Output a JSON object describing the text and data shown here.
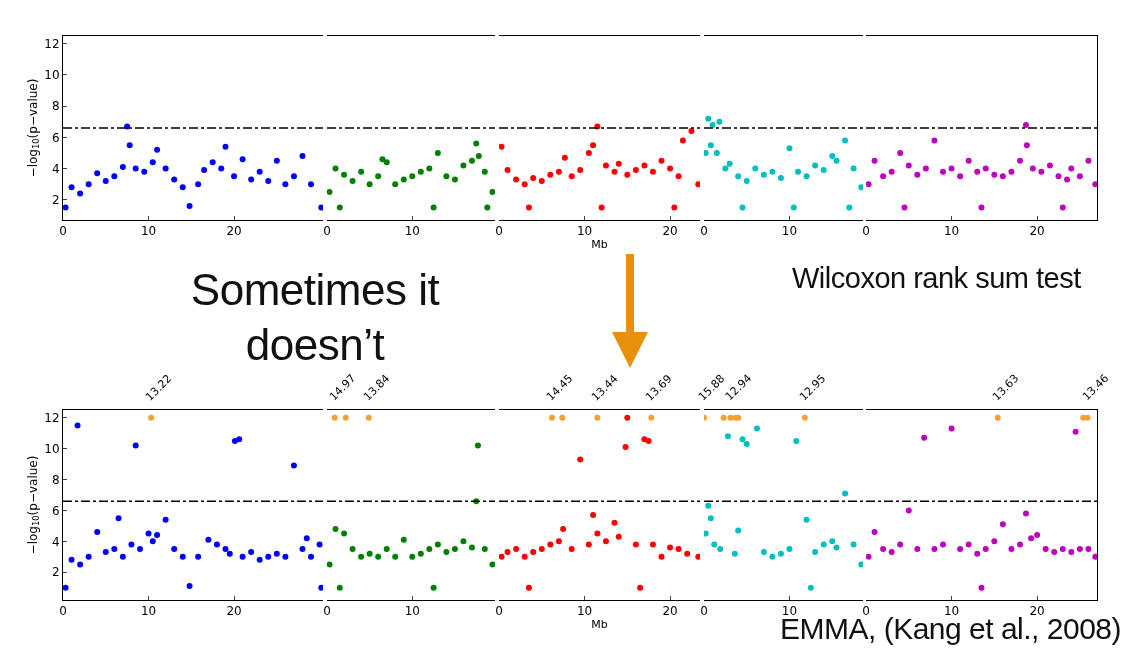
{
  "chart_data": [
    {
      "type": "scatter",
      "ylabel": "−log$_{10}$(p−value)",
      "marker": "circle",
      "xlim": [
        0,
        30.4
      ],
      "ylim": [
        0.7,
        12.5
      ],
      "xticks": [
        0,
        10,
        20
      ],
      "yticks": [
        2,
        4,
        6,
        8,
        10,
        12
      ],
      "ref_lines": [
        {
          "axis": "y",
          "value": 6.6,
          "color": "#000000",
          "line_style": "dashed"
        }
      ],
      "annotations": [
        "Sometimes it doesn’t",
        "Wilcoxon rank sum test"
      ],
      "series": [
        {
          "color": "#0000ff",
          "x": [
            0.3,
            1,
            2,
            3,
            4,
            5,
            6,
            7,
            7.5,
            7.8,
            8.5,
            9.5,
            10.5,
            11,
            12,
            13,
            14,
            14.8,
            15.8,
            16.5,
            17.5,
            18.5,
            19,
            20,
            21,
            22,
            23,
            24,
            25,
            26,
            27,
            28,
            29,
            30.2
          ],
          "values": [
            1.5,
            2.8,
            2.4,
            3.0,
            3.7,
            3.2,
            3.5,
            4.1,
            6.7,
            5.5,
            4.0,
            3.8,
            4.4,
            5.2,
            4.0,
            3.3,
            2.8,
            1.6,
            3.0,
            3.9,
            4.4,
            4.0,
            5.4,
            3.5,
            4.6,
            3.3,
            3.8,
            3.2,
            4.5,
            3.0,
            3.5,
            4.8,
            3.0,
            1.5
          ]
        }
      ]
    },
    {
      "type": "scatter",
      "marker": "circle",
      "tick_labels": "x",
      "xlim": [
        0,
        19.7
      ],
      "ylim": [
        0.7,
        12.5
      ],
      "xticks": [
        0,
        10
      ],
      "yticks": [
        2,
        4,
        6,
        8,
        10,
        12
      ],
      "ref_lines": [
        {
          "axis": "y",
          "value": 6.6,
          "color": "#000000",
          "line_style": "dashed"
        }
      ],
      "series": [
        {
          "color": "#008000",
          "x": [
            0.3,
            1,
            2,
            3,
            4,
            5,
            6,
            6.5,
            7,
            8,
            9,
            10,
            11,
            12,
            13,
            14,
            15,
            16,
            17,
            17.5,
            17.8,
            18.5,
            19.4,
            1.5,
            12.5,
            18.8
          ],
          "values": [
            2.5,
            4.0,
            3.6,
            3.2,
            3.8,
            3.0,
            3.5,
            4.6,
            4.4,
            3.0,
            3.3,
            3.5,
            3.8,
            4.0,
            5.0,
            3.5,
            3.3,
            4.2,
            4.5,
            5.6,
            4.8,
            3.8,
            2.5,
            1.5,
            1.5,
            1.5
          ]
        }
      ]
    },
    {
      "type": "scatter",
      "xlabel": "Mb",
      "marker": "circle",
      "tick_labels": "x",
      "xlim": [
        0,
        23.5
      ],
      "ylim": [
        0.7,
        12.5
      ],
      "xticks": [
        0,
        10,
        20
      ],
      "yticks": [
        2,
        4,
        6,
        8,
        10,
        12
      ],
      "ref_lines": [
        {
          "axis": "y",
          "value": 6.6,
          "color": "#000000",
          "line_style": "dashed"
        }
      ],
      "series": [
        {
          "color": "#ff0000",
          "x": [
            0.3,
            1,
            2,
            3,
            4,
            5,
            6,
            7,
            7.7,
            8.5,
            9.5,
            10.5,
            11,
            11.5,
            12.5,
            13.5,
            14,
            15,
            16,
            17,
            18,
            19,
            20,
            21,
            21.5,
            22.5,
            23.3,
            3.5,
            12,
            20.5
          ],
          "values": [
            5.4,
            3.9,
            3.3,
            3.0,
            3.4,
            3.2,
            3.6,
            3.8,
            4.7,
            3.5,
            3.9,
            5.0,
            5.5,
            6.7,
            4.2,
            3.8,
            4.3,
            3.6,
            3.9,
            4.2,
            3.8,
            4.5,
            4.0,
            3.5,
            5.8,
            6.4,
            3.0,
            1.5,
            1.5,
            1.5
          ]
        }
      ]
    },
    {
      "type": "scatter",
      "marker": "circle",
      "tick_labels": "x",
      "xlim": [
        0,
        18.6
      ],
      "ylim": [
        0.7,
        12.5
      ],
      "xticks": [
        0,
        10
      ],
      "yticks": [
        2,
        4,
        6,
        8,
        10,
        12
      ],
      "ref_lines": [
        {
          "axis": "y",
          "value": 6.6,
          "color": "#000000",
          "line_style": "dashed"
        }
      ],
      "series": [
        {
          "color": "#00bfbf",
          "x": [
            0.2,
            0.5,
            0.8,
            1.0,
            1.5,
            1.8,
            2.5,
            3,
            4,
            5,
            6,
            7,
            8,
            9,
            10,
            11,
            12,
            13,
            14,
            15,
            15.5,
            16.5,
            17.5,
            18.4,
            4.5,
            10.5,
            17
          ],
          "values": [
            5.0,
            7.2,
            5.5,
            6.8,
            5.0,
            7.0,
            4.0,
            4.3,
            3.5,
            3.2,
            4.0,
            3.6,
            3.8,
            3.4,
            5.3,
            3.8,
            3.5,
            4.2,
            3.9,
            4.8,
            4.5,
            5.8,
            4.0,
            2.8,
            1.5,
            1.5,
            1.5
          ]
        }
      ]
    },
    {
      "type": "scatter",
      "marker": "circle",
      "tick_labels": "x",
      "xlim": [
        0,
        27
      ],
      "ylim": [
        0.7,
        12.5
      ],
      "xticks": [
        0,
        10,
        20
      ],
      "yticks": [
        2,
        4,
        6,
        8,
        10,
        12
      ],
      "ref_lines": [
        {
          "axis": "y",
          "value": 6.6,
          "color": "#000000",
          "line_style": "dashed"
        }
      ],
      "series": [
        {
          "color": "#bf00bf",
          "x": [
            0.3,
            1,
            2,
            3,
            4,
            5,
            6,
            7,
            8,
            9,
            10,
            11,
            12,
            13,
            14,
            15,
            16,
            17,
            18,
            18.7,
            18.8,
            19.5,
            20.5,
            21.5,
            22.5,
            23.5,
            24,
            25,
            26,
            26.8,
            4.5,
            13.5,
            23
          ],
          "values": [
            3.0,
            4.5,
            3.5,
            3.8,
            5.0,
            4.2,
            3.6,
            4.0,
            5.8,
            3.8,
            4.0,
            3.5,
            4.5,
            3.8,
            4.0,
            3.6,
            3.5,
            3.8,
            4.5,
            6.8,
            5.5,
            4.0,
            3.8,
            4.2,
            3.5,
            3.3,
            4.0,
            3.5,
            4.5,
            3.0,
            1.5,
            1.5,
            1.5
          ]
        }
      ]
    },
    {
      "type": "scatter",
      "ylabel": "−log$_{10}$(p−value)",
      "marker": "circle",
      "xlim": [
        0,
        30.4
      ],
      "ylim": [
        0.2,
        12.5
      ],
      "xticks": [
        0,
        10,
        20
      ],
      "yticks": [
        2,
        4,
        6,
        8,
        10,
        12
      ],
      "ref_lines": [
        {
          "axis": "y",
          "value": 6.6,
          "color": "#000000",
          "line_style": "dashed"
        }
      ],
      "annotations": [
        "EMMA, (Kang et al., 2008)",
        {
          "text": "13.22",
          "x": 10.3,
          "y": 12
        }
      ],
      "series": [
        {
          "color": "#0000ff",
          "x": [
            0.3,
            1,
            1.7,
            2,
            3,
            4,
            5,
            6,
            6.5,
            7,
            8,
            8.5,
            9,
            10,
            10.5,
            11,
            12,
            13,
            14,
            14.8,
            15.8,
            17,
            18,
            19,
            19.5,
            20.1,
            20.6,
            21,
            22,
            23,
            24,
            25,
            26,
            27,
            28,
            28.5,
            29,
            30,
            30.2
          ],
          "values": [
            1.0,
            2.8,
            11.5,
            2.5,
            3.0,
            4.6,
            3.3,
            3.5,
            5.5,
            3.0,
            3.8,
            10.2,
            3.5,
            4.5,
            4.0,
            4.4,
            5.4,
            3.5,
            3.0,
            1.1,
            3.0,
            4.1,
            3.8,
            3.5,
            3.2,
            10.5,
            10.6,
            3.0,
            3.3,
            2.8,
            3.0,
            3.2,
            3.0,
            8.9,
            3.5,
            4.2,
            3.0,
            3.8,
            1.0
          ]
        },
        {
          "color": "#f5a030",
          "x": [
            10.3
          ],
          "values": [
            12
          ]
        }
      ]
    },
    {
      "type": "scatter",
      "marker": "circle",
      "tick_labels": "x",
      "xlim": [
        0,
        19.7
      ],
      "ylim": [
        0.2,
        12.5
      ],
      "xticks": [
        0,
        10
      ],
      "yticks": [
        2,
        4,
        6,
        8,
        10,
        12
      ],
      "ref_lines": [
        {
          "axis": "y",
          "value": 6.6,
          "color": "#000000",
          "line_style": "dashed"
        }
      ],
      "annotations": [
        {
          "text": "14.97",
          "x": 0.9,
          "y": 12
        },
        {
          "text": "13.84",
          "x": 4.9,
          "y": 12
        }
      ],
      "series": [
        {
          "color": "#008000",
          "x": [
            0.3,
            1,
            2,
            3,
            4,
            5,
            6,
            7,
            8,
            9,
            10,
            11,
            12,
            13,
            14,
            15,
            16,
            17,
            17.5,
            17.7,
            18.5,
            19.4,
            1.5,
            12.5
          ],
          "values": [
            2.5,
            4.8,
            4.5,
            3.5,
            3.0,
            3.2,
            3.0,
            3.5,
            3.0,
            4.1,
            3.0,
            3.2,
            3.5,
            3.8,
            3.3,
            3.5,
            4.0,
            3.6,
            6.6,
            10.2,
            3.5,
            2.5,
            1.0,
            1.0
          ]
        },
        {
          "color": "#f5a030",
          "x": [
            0.9,
            2.2,
            4.9
          ],
          "values": [
            12,
            12,
            12
          ]
        }
      ]
    },
    {
      "type": "scatter",
      "xlabel": "Mb",
      "marker": "circle",
      "tick_labels": "x",
      "xlim": [
        0,
        23.5
      ],
      "ylim": [
        0.2,
        12.5
      ],
      "xticks": [
        0,
        10,
        20
      ],
      "yticks": [
        2,
        4,
        6,
        8,
        10,
        12
      ],
      "ref_lines": [
        {
          "axis": "y",
          "value": 6.6,
          "color": "#000000",
          "line_style": "dashed"
        }
      ],
      "annotations": [
        {
          "text": "14.45",
          "x": 6.2,
          "y": 12
        },
        {
          "text": "13.44",
          "x": 11.5,
          "y": 12
        },
        {
          "text": "13.69",
          "x": 17.8,
          "y": 12
        }
      ],
      "series": [
        {
          "color": "#ff0000",
          "x": [
            0.3,
            1,
            2,
            3,
            4,
            5,
            6,
            7,
            7.5,
            8.5,
            9.5,
            10.5,
            11,
            11.5,
            12.5,
            13.5,
            14,
            14.8,
            15,
            16,
            17,
            17.5,
            18,
            19,
            20,
            21,
            22,
            23.3,
            3.5,
            16.5
          ],
          "values": [
            3.0,
            3.3,
            3.5,
            3.0,
            3.3,
            3.5,
            3.8,
            4.0,
            4.8,
            3.5,
            9.3,
            3.8,
            5.7,
            4.5,
            4.0,
            5.2,
            4.3,
            10.1,
            12.0,
            3.8,
            10.6,
            10.5,
            3.8,
            3.0,
            3.6,
            3.5,
            3.2,
            3.0,
            1.0,
            1.0
          ]
        },
        {
          "color": "#f5a030",
          "x": [
            6.2,
            7.4,
            11.5,
            17.8
          ],
          "values": [
            12,
            12,
            12,
            12
          ]
        }
      ]
    },
    {
      "type": "scatter",
      "marker": "circle",
      "tick_labels": "x",
      "xlim": [
        0,
        18.6
      ],
      "ylim": [
        0.2,
        12.5
      ],
      "xticks": [
        0,
        10
      ],
      "yticks": [
        2,
        4,
        6,
        8,
        10,
        12
      ],
      "ref_lines": [
        {
          "axis": "y",
          "value": 6.6,
          "color": "#000000",
          "line_style": "dashed"
        }
      ],
      "annotations": [
        {
          "text": "15.88",
          "x": 0,
          "y": 12
        },
        {
          "text": "12.94",
          "x": 3.1,
          "y": 12
        },
        {
          "text": "12.95",
          "x": 11.8,
          "y": 12
        }
      ],
      "series": [
        {
          "color": "#00bfbf",
          "x": [
            0.2,
            0.5,
            0.8,
            1.2,
            1.9,
            2.8,
            3.6,
            4,
            4.5,
            5,
            6.2,
            7,
            8,
            9,
            10,
            10.8,
            12,
            13,
            14,
            15,
            15.5,
            16.5,
            17.5,
            18.4,
            12.5
          ],
          "values": [
            4.5,
            6.3,
            5.5,
            3.8,
            3.5,
            10.8,
            3.2,
            4.7,
            10.6,
            10.3,
            11.3,
            3.3,
            3.0,
            3.2,
            3.5,
            10.5,
            5.4,
            3.3,
            3.8,
            4.0,
            3.6,
            7.1,
            3.8,
            2.5,
            1.0
          ]
        },
        {
          "color": "#f5a030",
          "x": [
            0,
            2.3,
            3.1,
            3.7,
            4.0,
            11.8
          ],
          "values": [
            12,
            12,
            12,
            12,
            12,
            12
          ]
        }
      ]
    },
    {
      "type": "scatter",
      "marker": "circle",
      "tick_labels": "x",
      "xlim": [
        0,
        27
      ],
      "ylim": [
        0.2,
        12.5
      ],
      "xticks": [
        0,
        10,
        20
      ],
      "yticks": [
        2,
        4,
        6,
        8,
        10,
        12
      ],
      "ref_lines": [
        {
          "axis": "y",
          "value": 6.6,
          "color": "#000000",
          "line_style": "dashed"
        }
      ],
      "annotations": [
        {
          "text": "13.63",
          "x": 15.4,
          "y": 12
        },
        {
          "text": "13.46",
          "x": 25.9,
          "y": 12
        }
      ],
      "series": [
        {
          "color": "#bf00bf",
          "x": [
            0.3,
            1,
            2,
            3,
            4,
            5,
            6,
            6.8,
            8,
            9,
            10,
            11,
            12,
            13,
            14,
            15,
            16,
            17,
            18,
            18.7,
            19.3,
            20,
            21,
            22,
            23,
            24,
            24.5,
            25,
            26,
            26.8,
            13.5
          ],
          "values": [
            3.0,
            4.6,
            3.5,
            3.3,
            3.8,
            6.0,
            3.5,
            10.7,
            3.5,
            3.8,
            11.3,
            3.5,
            3.8,
            3.2,
            3.5,
            4.0,
            5.1,
            3.5,
            3.8,
            5.8,
            4.2,
            4.4,
            3.5,
            3.3,
            3.5,
            3.3,
            11.1,
            3.5,
            3.5,
            3.0,
            1.0
          ]
        },
        {
          "color": "#f5a030",
          "x": [
            15.4,
            25.4,
            25.9
          ],
          "values": [
            12,
            12,
            12
          ]
        }
      ]
    }
  ]
}
